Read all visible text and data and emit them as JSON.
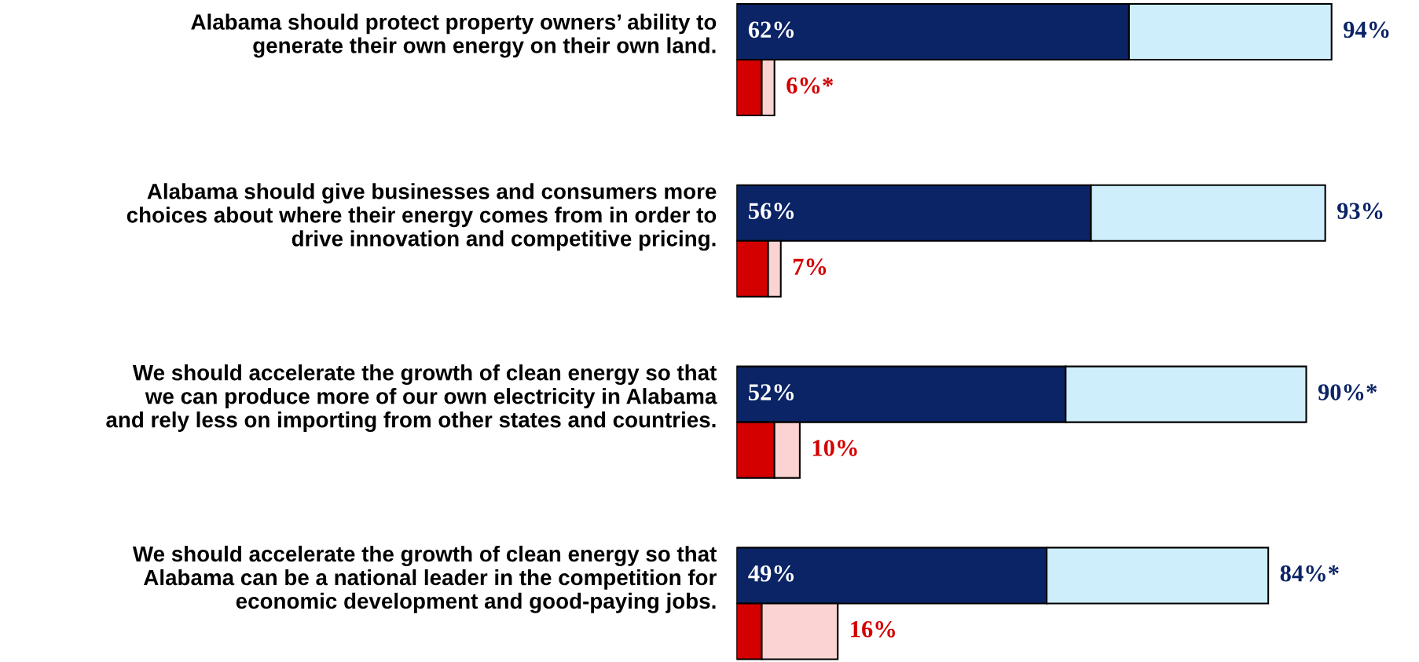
{
  "chart_data": {
    "type": "bar",
    "orientation": "horizontal",
    "stacked": true,
    "categories": [
      "Alabama should protect property owners’ ability to\ngenerate their own energy on their own land.",
      null,
      "Alabama should give businesses and consumers more\nchoices about where their energy comes from in order to\ndrive innovation and competitive pricing.",
      null,
      "We should accelerate the growth of clean energy so that\nwe can produce more of our own electricity in Alabama\nand rely less on importing from other states and countries.",
      null,
      "We should accelerate the growth of clean energy so that\nAlabama can be a national leader in the competition for\neconomic development and good-paying jobs.",
      null
    ],
    "series": [
      {
        "color": "#0b2466",
        "values": [
          62,
          null,
          56,
          null,
          52,
          null,
          49,
          null
        ],
        "value_labels": [
          "62%",
          null,
          "56%",
          null,
          "52%",
          null,
          "49%",
          null
        ]
      },
      {
        "color": "#cdeefa",
        "values": [
          32,
          null,
          37,
          null,
          38,
          null,
          35,
          null
        ]
      },
      {
        "color": "#d40000",
        "values": [
          null,
          4,
          null,
          5,
          null,
          6,
          null,
          4
        ]
      },
      {
        "color": "#fbd3d3",
        "values": [
          null,
          2,
          null,
          2,
          null,
          4,
          null,
          12
        ]
      }
    ],
    "totals": [
      "94%",
      "6%*",
      "93%",
      "7%",
      "90%*",
      "10%",
      "84%*",
      "16%"
    ],
    "grid": false,
    "legend": false
  }
}
